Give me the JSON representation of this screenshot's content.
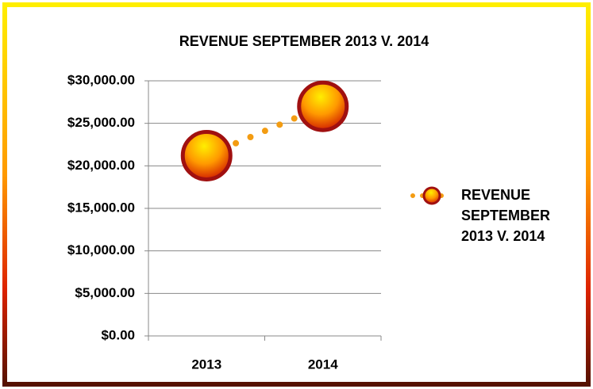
{
  "chart_data": {
    "type": "line",
    "title": "REVENUE SEPTEMBER 2013 V. 2014",
    "categories": [
      "2013",
      "2014"
    ],
    "series": [
      {
        "name": "REVENUE SEPTEMBER 2013 V. 2014",
        "color": "#f39c12",
        "values": [
          21200,
          27000
        ]
      }
    ],
    "ylim": [
      0,
      30000
    ],
    "yticks": [
      {
        "value": 0,
        "label": "$0.00"
      },
      {
        "value": 5000,
        "label": "$5,000.00"
      },
      {
        "value": 10000,
        "label": "$10,000.00"
      },
      {
        "value": 15000,
        "label": "$15,000.00"
      },
      {
        "value": 20000,
        "label": "$20,000.00"
      },
      {
        "value": 25000,
        "label": "$25,000.00"
      },
      {
        "value": 30000,
        "label": "$30,000.00"
      }
    ],
    "grid": true,
    "legend": "right"
  }
}
